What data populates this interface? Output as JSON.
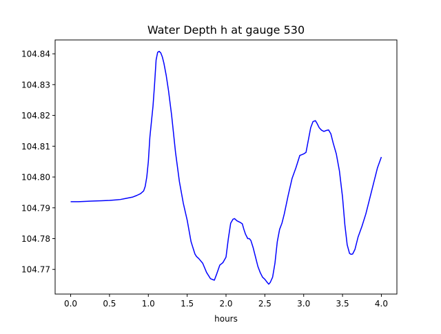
{
  "chart_data": {
    "type": "line",
    "title": "Water Depth h at gauge 530",
    "xlabel": "hours",
    "ylabel": "",
    "xlim": [
      -0.2,
      4.2
    ],
    "ylim": [
      104.762,
      104.8445
    ],
    "x_ticks": [
      0.0,
      0.5,
      1.0,
      1.5,
      2.0,
      2.5,
      3.0,
      3.5,
      4.0
    ],
    "x_tick_labels": [
      "0.0",
      "0.5",
      "1.0",
      "1.5",
      "2.0",
      "2.5",
      "3.0",
      "3.5",
      "4.0"
    ],
    "y_ticks": [
      104.77,
      104.78,
      104.79,
      104.8,
      104.81,
      104.82,
      104.83,
      104.84
    ],
    "y_tick_labels": [
      "104.77",
      "104.78",
      "104.79",
      "104.80",
      "104.81",
      "104.82",
      "104.83",
      "104.84"
    ],
    "grid": false,
    "colors": {
      "series": "#0000ff",
      "axes": "#000000",
      "background": "#ffffff"
    },
    "series": [
      {
        "x": [
          0.0,
          0.1,
          0.2,
          0.3,
          0.4,
          0.5,
          0.6,
          0.64,
          0.7,
          0.8,
          0.85,
          0.9,
          0.94,
          0.96,
          0.98,
          1.0,
          1.02,
          1.04,
          1.06,
          1.08,
          1.1,
          1.12,
          1.14,
          1.16,
          1.18,
          1.2,
          1.23,
          1.26,
          1.3,
          1.35,
          1.4,
          1.45,
          1.5,
          1.55,
          1.6,
          1.62,
          1.65,
          1.7,
          1.75,
          1.8,
          1.85,
          1.88,
          1.92,
          1.96,
          2.0,
          2.03,
          2.06,
          2.09,
          2.11,
          2.14,
          2.18,
          2.21,
          2.23,
          2.25,
          2.28,
          2.3,
          2.32,
          2.35,
          2.38,
          2.41,
          2.44,
          2.47,
          2.5,
          2.53,
          2.55,
          2.57,
          2.6,
          2.63,
          2.66,
          2.69,
          2.72,
          2.75,
          2.8,
          2.85,
          2.9,
          2.95,
          2.98,
          3.0,
          3.03,
          3.06,
          3.09,
          3.12,
          3.15,
          3.17,
          3.2,
          3.23,
          3.26,
          3.29,
          3.32,
          3.35,
          3.38,
          3.42,
          3.46,
          3.5,
          3.53,
          3.56,
          3.59,
          3.61,
          3.63,
          3.66,
          3.7,
          3.75,
          3.8,
          3.85,
          3.9,
          3.95,
          4.0
        ],
        "y": [
          104.792,
          104.792,
          104.7921,
          104.7922,
          104.7923,
          104.7924,
          104.7926,
          104.7927,
          104.793,
          104.7935,
          104.794,
          104.7946,
          104.7955,
          104.797,
          104.8,
          104.805,
          104.813,
          104.818,
          104.823,
          104.83,
          104.838,
          104.8405,
          104.8408,
          104.8403,
          104.839,
          104.837,
          104.833,
          104.828,
          104.82,
          104.808,
          104.7985,
          104.7915,
          104.786,
          104.779,
          104.775,
          104.7742,
          104.7735,
          104.772,
          104.769,
          104.767,
          104.7665,
          104.7685,
          104.7714,
          104.7722,
          104.774,
          104.78,
          104.785,
          104.7863,
          104.7865,
          104.7858,
          104.7853,
          104.7848,
          104.783,
          104.7815,
          104.78,
          104.78,
          104.7794,
          104.777,
          104.774,
          104.771,
          104.769,
          104.7675,
          104.7668,
          104.7658,
          104.7652,
          104.7658,
          104.7675,
          104.772,
          104.779,
          104.783,
          104.785,
          104.788,
          104.794,
          104.7995,
          104.803,
          104.807,
          104.8073,
          104.8075,
          104.808,
          104.812,
          104.816,
          104.818,
          104.8183,
          104.8175,
          104.816,
          104.8152,
          104.8148,
          104.8151,
          104.8153,
          104.814,
          104.811,
          104.8075,
          104.802,
          104.7935,
          104.7845,
          104.778,
          104.7752,
          104.7749,
          104.775,
          104.7765,
          104.7805,
          104.784,
          104.788,
          104.793,
          104.798,
          104.803,
          104.8065
        ]
      }
    ]
  }
}
